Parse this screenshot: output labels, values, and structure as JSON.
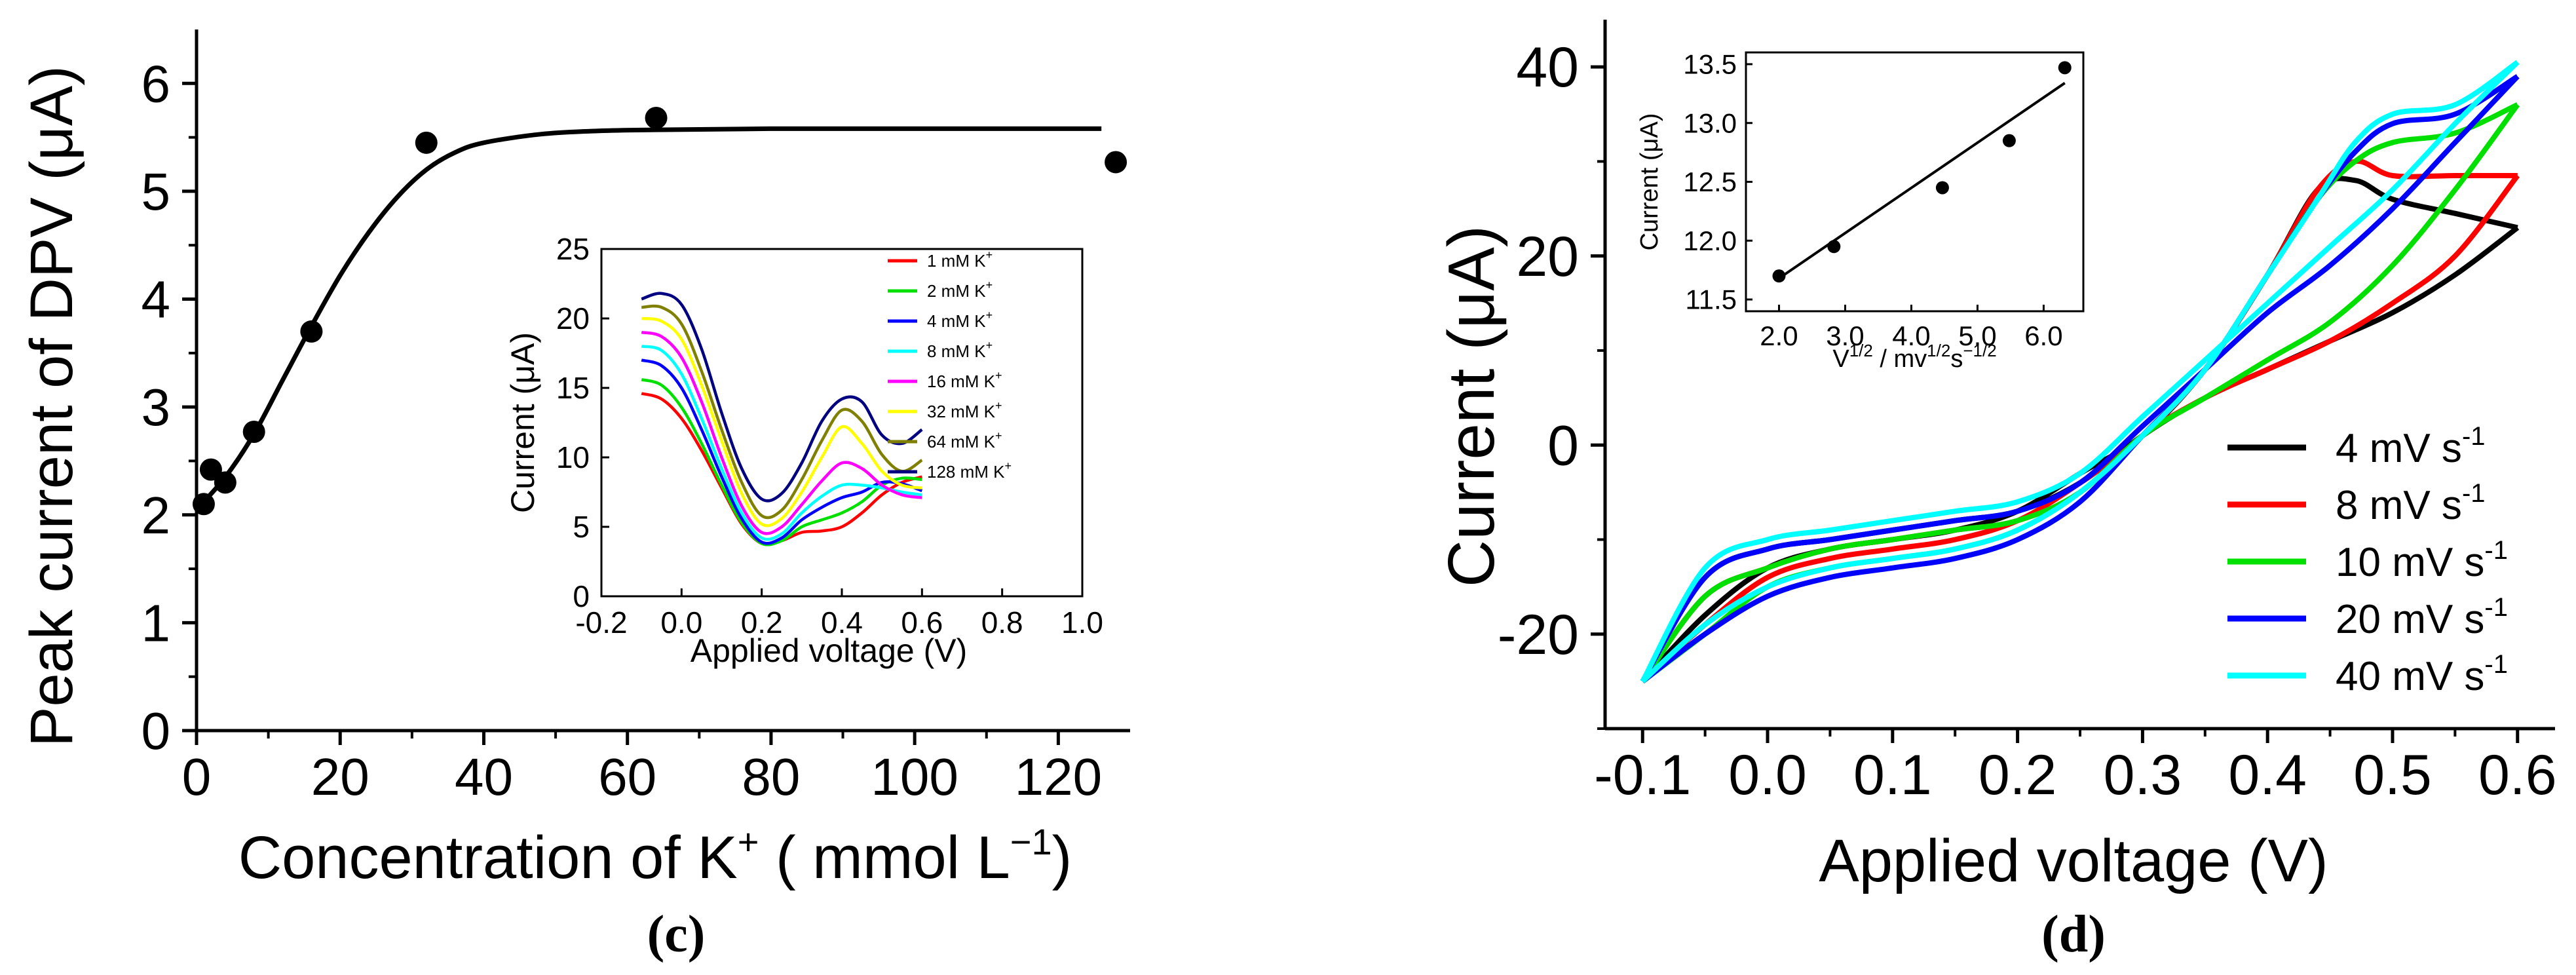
{
  "panels": [
    {
      "caption": "(c)",
      "main_chart": {
        "type": "scatter",
        "ylabel": "Peak current of DPV (μA)",
        "xlabel": "Concentration of K⁺ ( mmol L⁻¹)",
        "xlim": [
          0,
          130
        ],
        "ylim": [
          0,
          6.5
        ],
        "xticks": [
          "0",
          "20",
          "40",
          "60",
          "80",
          "100",
          "120"
        ],
        "yticks": [
          "0",
          "1",
          "2",
          "3",
          "4",
          "5",
          "6"
        ],
        "points": [
          {
            "x": 1,
            "y": 2.1
          },
          {
            "x": 2,
            "y": 2.42
          },
          {
            "x": 4,
            "y": 2.3
          },
          {
            "x": 8,
            "y": 2.77
          },
          {
            "x": 16,
            "y": 3.7
          },
          {
            "x": 32,
            "y": 5.45
          },
          {
            "x": 64,
            "y": 5.68
          },
          {
            "x": 128,
            "y": 5.27
          }
        ],
        "fit_curve": {
          "x": [
            0,
            4,
            8,
            12,
            16,
            20,
            24,
            28,
            32,
            36,
            40,
            48,
            56,
            64,
            80,
            100,
            120,
            126
          ],
          "y": [
            2.05,
            2.35,
            2.75,
            3.25,
            3.75,
            4.22,
            4.62,
            4.95,
            5.2,
            5.36,
            5.45,
            5.53,
            5.56,
            5.57,
            5.58,
            5.58,
            5.58,
            5.58
          ]
        }
      },
      "inset_chart": {
        "type": "line",
        "ylabel": "Current (μA)",
        "xlabel": "Applied voltage (V)",
        "xlim": [
          -0.2,
          1.0
        ],
        "ylim": [
          0,
          25
        ],
        "xticks": [
          "-0.2",
          "0.0",
          "0.2",
          "0.4",
          "0.6",
          "0.8",
          "1.0"
        ],
        "yticks": [
          "0",
          "5",
          "10",
          "15",
          "20",
          "25"
        ],
        "series": [
          {
            "name": "1 mM K",
            "sup": "+",
            "color": "#ff0000",
            "x": [
              -0.1,
              -0.05,
              0.0,
              0.05,
              0.1,
              0.15,
              0.2,
              0.25,
              0.3,
              0.35,
              0.4,
              0.45,
              0.5,
              0.55,
              0.6
            ],
            "y": [
              14.6,
              14.2,
              12.8,
              10.5,
              7.8,
              5.2,
              3.8,
              4.0,
              4.6,
              4.7,
              5.0,
              6.0,
              7.3,
              8.2,
              8.6
            ]
          },
          {
            "name": "2 mM K",
            "sup": "+",
            "color": "#00e000",
            "x": [
              -0.1,
              -0.05,
              0.0,
              0.05,
              0.1,
              0.15,
              0.2,
              0.25,
              0.3,
              0.35,
              0.4,
              0.45,
              0.5,
              0.55,
              0.6
            ],
            "y": [
              15.6,
              15.2,
              13.6,
              11.0,
              8.0,
              5.3,
              3.8,
              4.0,
              5.0,
              5.5,
              6.0,
              6.8,
              8.0,
              8.5,
              8.4
            ]
          },
          {
            "name": "4 mM K",
            "sup": "+",
            "color": "#0000ff",
            "x": [
              -0.1,
              -0.05,
              0.0,
              0.05,
              0.1,
              0.15,
              0.2,
              0.25,
              0.3,
              0.35,
              0.4,
              0.45,
              0.5,
              0.55,
              0.6
            ],
            "y": [
              17.0,
              16.6,
              15.0,
              12.0,
              8.6,
              5.6,
              3.9,
              4.2,
              5.5,
              6.4,
              7.1,
              7.5,
              8.2,
              8.1,
              7.6
            ]
          },
          {
            "name": "8 mM K",
            "sup": "+",
            "color": "#00ffff",
            "x": [
              -0.1,
              -0.05,
              0.0,
              0.05,
              0.1,
              0.15,
              0.2,
              0.25,
              0.3,
              0.35,
              0.4,
              0.45,
              0.5,
              0.55,
              0.6
            ],
            "y": [
              18.0,
              17.7,
              16.0,
              12.8,
              9.2,
              6.0,
              4.2,
              4.5,
              6.0,
              7.2,
              8.0,
              8.0,
              7.8,
              7.5,
              7.3
            ]
          },
          {
            "name": "16 mM K",
            "sup": "+",
            "color": "#ff00ff",
            "x": [
              -0.1,
              -0.05,
              0.0,
              0.05,
              0.1,
              0.15,
              0.2,
              0.25,
              0.3,
              0.35,
              0.4,
              0.45,
              0.5,
              0.55,
              0.6
            ],
            "y": [
              19.0,
              18.7,
              17.2,
              14.0,
              10.0,
              6.5,
              4.6,
              5.0,
              6.6,
              8.3,
              9.6,
              9.2,
              8.0,
              7.3,
              7.1
            ]
          },
          {
            "name": "32 mM K",
            "sup": "+",
            "color": "#ffff00",
            "x": [
              -0.1,
              -0.05,
              0.0,
              0.05,
              0.1,
              0.15,
              0.2,
              0.25,
              0.3,
              0.35,
              0.4,
              0.45,
              0.5,
              0.55,
              0.6
            ],
            "y": [
              20.0,
              19.8,
              18.5,
              15.2,
              11.2,
              7.4,
              5.2,
              5.6,
              7.5,
              10.0,
              12.2,
              11.0,
              9.0,
              8.0,
              7.8
            ]
          },
          {
            "name": "64 mM K",
            "sup": "+",
            "color": "#808000",
            "x": [
              -0.1,
              -0.05,
              0.0,
              0.05,
              0.1,
              0.15,
              0.2,
              0.25,
              0.3,
              0.35,
              0.4,
              0.45,
              0.5,
              0.55,
              0.6
            ],
            "y": [
              20.8,
              20.8,
              19.6,
              16.2,
              12.0,
              8.2,
              5.8,
              6.2,
              8.4,
              11.2,
              13.4,
              12.6,
              10.2,
              9.0,
              9.8
            ]
          },
          {
            "name": "128 mM K",
            "sup": "+",
            "color": "#000080",
            "x": [
              -0.1,
              -0.05,
              0.0,
              0.05,
              0.1,
              0.15,
              0.2,
              0.25,
              0.3,
              0.35,
              0.4,
              0.45,
              0.5,
              0.55,
              0.6
            ],
            "y": [
              21.4,
              21.8,
              21.0,
              17.8,
              13.2,
              9.2,
              7.0,
              7.4,
              9.6,
              12.6,
              14.2,
              14.0,
              11.6,
              11.0,
              12.0
            ]
          }
        ]
      }
    },
    {
      "caption": "(d)",
      "main_chart": {
        "type": "line",
        "ylabel": "Current (μA)",
        "xlabel": "Applied voltage (V)",
        "xlim": [
          -0.13,
          0.63
        ],
        "ylim": [
          -30,
          45
        ],
        "xticks": [
          "-0.1",
          "0.0",
          "0.1",
          "0.2",
          "0.3",
          "0.4",
          "0.5",
          "0.6"
        ],
        "yticks": [
          "-20",
          "0",
          "20",
          "40"
        ],
        "legend_position": "bottom-right",
        "series": [
          {
            "name": "4 mV s",
            "sup": "-1",
            "color": "#000000",
            "forward": {
              "x": [
                -0.1,
                -0.05,
                0.0,
                0.05,
                0.1,
                0.15,
                0.2,
                0.25,
                0.3,
                0.35,
                0.4,
                0.44,
                0.47,
                0.5,
                0.55,
                0.6
              ],
              "y": [
                -25,
                -18,
                -13,
                -11,
                -10,
                -9,
                -7,
                -3,
                1,
                8,
                18,
                27,
                28,
                26,
                24.5,
                23
              ]
            },
            "reverse": {
              "x": [
                0.6,
                0.55,
                0.5,
                0.45,
                0.4,
                0.35,
                0.3,
                0.25,
                0.2,
                0.15,
                0.1,
                0.05,
                0.0,
                -0.05,
                -0.1
              ],
              "y": [
                23,
                18,
                14,
                11,
                8,
                5,
                1,
                -4,
                -7,
                -8,
                -9,
                -10,
                -11,
                -14,
                -25
              ]
            }
          },
          {
            "name": "8 mV s",
            "sup": "-1",
            "color": "#ff0000",
            "forward": {
              "x": [
                -0.1,
                -0.05,
                0.0,
                0.05,
                0.1,
                0.15,
                0.2,
                0.25,
                0.3,
                0.35,
                0.4,
                0.44,
                0.47,
                0.5,
                0.55,
                0.6
              ],
              "y": [
                -25,
                -19,
                -14,
                -12,
                -11,
                -10,
                -8,
                -4,
                1,
                8,
                18,
                27,
                30,
                28.5,
                28.5,
                28.5
              ]
            },
            "reverse": {
              "x": [
                0.6,
                0.55,
                0.5,
                0.45,
                0.4,
                0.35,
                0.3,
                0.25,
                0.2,
                0.15,
                0.1,
                0.05,
                0.0,
                -0.05,
                -0.1
              ],
              "y": [
                28.5,
                20,
                15,
                11,
                8,
                5,
                1,
                -5,
                -8,
                -9,
                -10,
                -11,
                -13,
                -16,
                -25
              ]
            }
          },
          {
            "name": "10 mV s",
            "sup": "-1",
            "color": "#00e000",
            "forward": {
              "x": [
                -0.1,
                -0.05,
                0.0,
                0.05,
                0.1,
                0.15,
                0.2,
                0.25,
                0.3,
                0.35,
                0.4,
                0.44,
                0.47,
                0.5,
                0.55,
                0.6
              ],
              "y": [
                -25,
                -20,
                -15,
                -13,
                -12,
                -11,
                -9,
                -5,
                1,
                8,
                18,
                26,
                30,
                32,
                33,
                36
              ]
            },
            "reverse": {
              "x": [
                0.6,
                0.55,
                0.5,
                0.45,
                0.4,
                0.35,
                0.3,
                0.25,
                0.2,
                0.15,
                0.1,
                0.05,
                0.0,
                -0.05,
                -0.1
              ],
              "y": [
                36,
                27,
                19,
                13,
                9,
                5,
                1,
                -5,
                -8,
                -9,
                -10,
                -11,
                -13,
                -16,
                -25
              ]
            }
          },
          {
            "name": "20 mV s",
            "sup": "-1",
            "color": "#0000ff",
            "forward": {
              "x": [
                -0.1,
                -0.05,
                0.0,
                0.05,
                0.1,
                0.15,
                0.2,
                0.25,
                0.3,
                0.35,
                0.4,
                0.44,
                0.47,
                0.5,
                0.55,
                0.6
              ],
              "y": [
                -25,
                -20,
                -16,
                -14,
                -13,
                -12,
                -10,
                -6,
                1,
                8,
                18,
                26,
                31,
                34,
                35,
                39
              ]
            },
            "reverse": {
              "x": [
                0.6,
                0.55,
                0.5,
                0.45,
                0.4,
                0.35,
                0.3,
                0.25,
                0.2,
                0.15,
                0.1,
                0.05,
                0.0,
                -0.05,
                -0.1
              ],
              "y": [
                39,
                32,
                25,
                19,
                14,
                8,
                2,
                -4,
                -7,
                -8,
                -9,
                -10,
                -11,
                -14,
                -25
              ]
            }
          },
          {
            "name": "40 mV s",
            "sup": "-1",
            "color": "#00ffff",
            "forward": {
              "x": [
                -0.1,
                -0.05,
                0.0,
                0.05,
                0.1,
                0.15,
                0.2,
                0.25,
                0.3,
                0.35,
                0.4,
                0.44,
                0.47,
                0.5,
                0.55,
                0.6
              ],
              "y": [
                -25,
                -19,
                -15,
                -13,
                -12,
                -11,
                -9,
                -5,
                1,
                8,
                18,
                26,
                32,
                35,
                36,
                40.5
              ]
            },
            "reverse": {
              "x": [
                0.6,
                0.55,
                0.5,
                0.45,
                0.4,
                0.35,
                0.3,
                0.25,
                0.2,
                0.15,
                0.1,
                0.05,
                0.0,
                -0.05,
                -0.1
              ],
              "y": [
                40.5,
                34,
                27,
                21,
                15,
                9,
                3,
                -3,
                -6,
                -7,
                -8,
                -9,
                -10,
                -13,
                -25
              ]
            }
          }
        ]
      },
      "inset_chart": {
        "type": "scatter",
        "ylabel": "Current (μA)",
        "xlabel_parts": [
          "V",
          "1/2",
          " / mv",
          "1/2",
          "s",
          "−1/2"
        ],
        "xlim": [
          1.5,
          6.6
        ],
        "ylim": [
          11.4,
          13.6
        ],
        "xticks": [
          "2.0",
          "3.0",
          "4.0",
          "5.0",
          "6.0"
        ],
        "yticks": [
          "11.5",
          "12.0",
          "12.5",
          "13.0",
          "13.5"
        ],
        "points": [
          {
            "x": 2.0,
            "y": 11.7
          },
          {
            "x": 2.83,
            "y": 11.95
          },
          {
            "x": 4.47,
            "y": 12.45
          },
          {
            "x": 5.48,
            "y": 12.85
          },
          {
            "x": 6.32,
            "y": 13.47
          }
        ],
        "fit_line": {
          "x": [
            2.0,
            6.32
          ],
          "y": [
            11.68,
            13.34
          ]
        }
      }
    }
  ]
}
